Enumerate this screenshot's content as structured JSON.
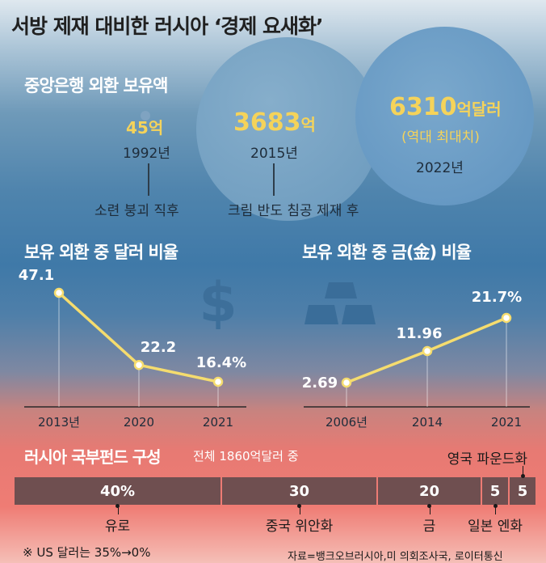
{
  "title": "서방 제재 대비한 러시아 ‘경제 요새화’",
  "reserves": {
    "title": "중앙은행 외환 보유액",
    "items": [
      {
        "amount": "45",
        "unit": "억",
        "year": "1992년",
        "caption": "소련 붕괴 직후"
      },
      {
        "amount": "3683",
        "unit": "억",
        "year": "2015년",
        "caption": "크림 반도 침공 제재 후"
      },
      {
        "amount": "6310",
        "unit": "억달러",
        "note": "(역대 최대치)",
        "year": "2022년"
      }
    ]
  },
  "chart_data": [
    {
      "type": "line",
      "title": "보유 외환 중 달러 비율",
      "categories": [
        "2013년",
        "2020",
        "2021"
      ],
      "values": [
        47.1,
        22.2,
        16.4
      ],
      "value_labels": [
        "47.1",
        "22.2",
        "16.4%"
      ],
      "icon": "dollar-icon",
      "line_color": "#f5dc6e"
    },
    {
      "type": "line",
      "title": "보유 외환 중 금(金) 비율",
      "categories": [
        "2006년",
        "2014",
        "2021"
      ],
      "values": [
        2.69,
        11.96,
        21.7
      ],
      "value_labels": [
        "2.69",
        "11.96",
        "21.7%"
      ],
      "icon": "gold-bars-icon",
      "line_color": "#f5dc6e"
    },
    {
      "type": "bar",
      "title": "러시아 국부펀드 구성",
      "subtitle": "전체 1860억달러 중",
      "categories": [
        "유로",
        "중국 위안화",
        "금",
        "일본 엔화",
        "영국 파운드화"
      ],
      "values": [
        40,
        30,
        20,
        5,
        5
      ],
      "value_labels": [
        "40%",
        "30",
        "20",
        "5",
        "5"
      ],
      "bar_color": "#6f4f50"
    }
  ],
  "footnote": "※ US 달러는 35%→0%",
  "source": "자료=뱅크오브러시아,미 의회조사국, 로이터통신"
}
